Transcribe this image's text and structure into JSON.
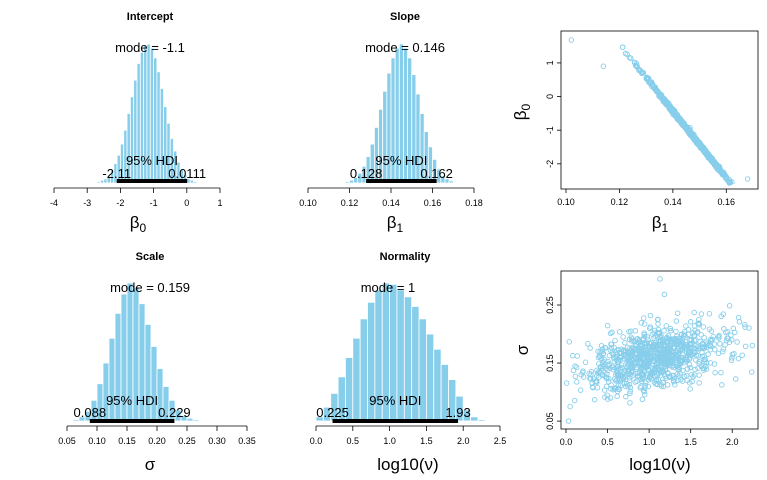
{
  "colors": {
    "bar_fill": "#87CEEB",
    "bar_stroke": "#ffffff",
    "hdi_line": "#000000",
    "scatter_point": "#87CEEB"
  },
  "chart_data": [
    {
      "id": "intercept",
      "type": "bar",
      "title": "Intercept",
      "xlabel_main": "β",
      "xlabel_sub": "0",
      "xlim": [
        -4,
        1
      ],
      "xticks": [
        -4,
        -3,
        -2,
        -1,
        0,
        1
      ],
      "xticklabels": [
        "-4",
        "-3",
        "-2",
        "-1",
        "0",
        "1"
      ],
      "mode_label": "mode = -1.1",
      "hdi_label": "95% HDI",
      "hdi": [
        -2.11,
        0.0111
      ],
      "hdi_low_label": "-2.11",
      "hdi_high_label": "0.0111",
      "bin_width": 0.1,
      "bins_x": [
        -2.65,
        -2.55,
        -2.45,
        -2.35,
        -2.25,
        -2.15,
        -2.05,
        -1.95,
        -1.85,
        -1.75,
        -1.65,
        -1.55,
        -1.45,
        -1.35,
        -1.25,
        -1.15,
        -1.05,
        -0.95,
        -0.85,
        -0.75,
        -0.65,
        -0.55,
        -0.45,
        -0.35,
        -0.25,
        -0.15,
        -0.05,
        0.05,
        0.15,
        0.25,
        0.35
      ],
      "bins_density": [
        0.01,
        0.02,
        0.03,
        0.05,
        0.09,
        0.14,
        0.2,
        0.28,
        0.38,
        0.5,
        0.62,
        0.74,
        0.86,
        0.94,
        0.99,
        1.0,
        0.97,
        0.9,
        0.8,
        0.68,
        0.55,
        0.43,
        0.32,
        0.23,
        0.15,
        0.1,
        0.06,
        0.03,
        0.02,
        0.01,
        0.005
      ]
    },
    {
      "id": "slope",
      "type": "bar",
      "title": "Slope",
      "xlabel_main": "β",
      "xlabel_sub": "1",
      "xlim": [
        0.1,
        0.18
      ],
      "xticks": [
        0.1,
        0.12,
        0.14,
        0.16,
        0.18
      ],
      "xticklabels": [
        "0.10",
        "0.12",
        "0.14",
        "0.16",
        "0.18"
      ],
      "mode_label": "mode = 0.146",
      "hdi_label": "95% HDI",
      "hdi": [
        0.128,
        0.162
      ],
      "hdi_low_label": "0.128",
      "hdi_high_label": "0.162",
      "bin_width": 0.002,
      "bins_x": [
        0.119,
        0.121,
        0.123,
        0.125,
        0.127,
        0.129,
        0.131,
        0.133,
        0.135,
        0.137,
        0.139,
        0.141,
        0.143,
        0.145,
        0.147,
        0.149,
        0.151,
        0.153,
        0.155,
        0.157,
        0.159,
        0.161,
        0.163,
        0.165,
        0.167,
        0.169,
        0.171
      ],
      "bins_density": [
        0.01,
        0.02,
        0.04,
        0.07,
        0.12,
        0.19,
        0.28,
        0.4,
        0.53,
        0.66,
        0.79,
        0.9,
        0.97,
        1.0,
        0.97,
        0.9,
        0.78,
        0.64,
        0.5,
        0.37,
        0.26,
        0.17,
        0.1,
        0.05,
        0.03,
        0.015,
        0.005
      ]
    },
    {
      "id": "scale",
      "type": "bar",
      "title": "Scale",
      "xlabel_main": "σ",
      "xlabel_sub": "",
      "xlim": [
        0.05,
        0.35
      ],
      "xticks": [
        0.05,
        0.1,
        0.15,
        0.2,
        0.25,
        0.3,
        0.35
      ],
      "xticklabels": [
        "0.05",
        "0.10",
        "0.15",
        "0.20",
        "0.25",
        "0.30",
        "0.35"
      ],
      "mode_label": "mode = 0.159",
      "hdi_label": "95% HDI",
      "hdi": [
        0.088,
        0.229
      ],
      "hdi_low_label": "0.088",
      "hdi_high_label": "0.229",
      "bin_width": 0.01,
      "bins_x": [
        0.065,
        0.075,
        0.085,
        0.095,
        0.105,
        0.115,
        0.125,
        0.135,
        0.145,
        0.155,
        0.165,
        0.175,
        0.185,
        0.195,
        0.205,
        0.215,
        0.225,
        0.235,
        0.245,
        0.255,
        0.265
      ],
      "bins_density": [
        0.01,
        0.03,
        0.07,
        0.15,
        0.27,
        0.42,
        0.6,
        0.78,
        0.92,
        1.0,
        0.97,
        0.85,
        0.7,
        0.54,
        0.38,
        0.25,
        0.15,
        0.08,
        0.04,
        0.02,
        0.01
      ]
    },
    {
      "id": "normality",
      "type": "bar",
      "title": "Normality",
      "xlabel_main": "log10(ν)",
      "xlabel_sub": "",
      "xlim": [
        0,
        2.5
      ],
      "xticks": [
        0,
        0.5,
        1,
        1.5,
        2,
        2.5
      ],
      "xticklabels": [
        "0.0",
        "0.5",
        "1.0",
        "1.5",
        "2.0",
        "2.5"
      ],
      "mode_label": "mode = 1",
      "hdi_label": "95% HDI",
      "hdi": [
        0.225,
        1.93
      ],
      "hdi_low_label": "0.225",
      "hdi_high_label": "1.93",
      "bin_width": 0.1,
      "bins_x": [
        0.05,
        0.15,
        0.25,
        0.35,
        0.45,
        0.55,
        0.65,
        0.75,
        0.85,
        0.95,
        1.05,
        1.15,
        1.25,
        1.35,
        1.45,
        1.55,
        1.65,
        1.75,
        1.85,
        1.95,
        2.05,
        2.15,
        2.25
      ],
      "bins_density": [
        0.03,
        0.1,
        0.2,
        0.32,
        0.46,
        0.6,
        0.74,
        0.86,
        0.95,
        1.0,
        0.99,
        0.95,
        0.9,
        0.83,
        0.74,
        0.63,
        0.52,
        0.41,
        0.3,
        0.18,
        0.08,
        0.03,
        0.01
      ]
    },
    {
      "id": "beta0-vs-beta1",
      "type": "scatter",
      "xlabel_main": "β",
      "xlabel_sub": "1",
      "ylabel_main": "β",
      "ylabel_sub": "0",
      "xlim": [
        0.1,
        0.17
      ],
      "ylim": [
        -2.6,
        1.8
      ],
      "xticks": [
        0.1,
        0.12,
        0.14,
        0.16
      ],
      "xticklabels": [
        "0.10",
        "0.12",
        "0.14",
        "0.16"
      ],
      "yticks": [
        -2,
        -1,
        0,
        1
      ],
      "yticklabels": [
        "-2",
        "-1",
        "0",
        "1"
      ],
      "relation": {
        "slope": -99.5,
        "intercept": 13.5,
        "spread": 0.03
      },
      "x_center": 0.146,
      "x_sd": 0.0088,
      "n_points": 700,
      "extra_points": [
        [
          0.102,
          1.68
        ],
        [
          0.114,
          0.9
        ],
        [
          0.168,
          -2.45
        ]
      ]
    },
    {
      "id": "sigma-vs-lognu",
      "type": "scatter",
      "xlabel_main": "log10(ν)",
      "xlabel_sub": "",
      "ylabel_main": "σ",
      "ylabel_sub": "",
      "xlim": [
        0,
        2.25
      ],
      "ylim": [
        0.045,
        0.3
      ],
      "xticks": [
        0,
        0.5,
        1,
        1.5,
        2
      ],
      "xticklabels": [
        "0.0",
        "0.5",
        "1.0",
        "1.5",
        "2.0"
      ],
      "yticks": [
        0.05,
        0.15,
        0.25
      ],
      "yticklabels": [
        "0.05",
        "0.15",
        "0.25"
      ],
      "relation": {
        "slope": 0.032,
        "intercept": 0.125,
        "spread": 0.026
      },
      "x_center": 1.05,
      "x_sd": 0.42,
      "n_points": 900,
      "extra_points": [
        [
          0.03,
          0.05
        ],
        [
          1.13,
          0.295
        ],
        [
          0.05,
          0.075
        ]
      ]
    }
  ]
}
